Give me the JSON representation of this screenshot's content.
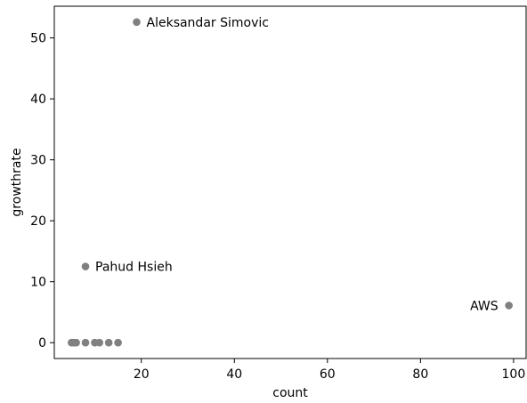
{
  "chart_data": {
    "type": "scatter",
    "title": "",
    "xlabel": "count",
    "ylabel": "growthrate",
    "xlim": [
      1.3,
      102.7
    ],
    "ylim": [
      -2.6,
      55.2
    ],
    "xticks": [
      20,
      40,
      60,
      80,
      100
    ],
    "yticks": [
      0,
      10,
      20,
      30,
      40,
      50
    ],
    "grid": false,
    "marker_color": "#808080",
    "points": [
      {
        "x": 5,
        "y": 0
      },
      {
        "x": 5.5,
        "y": 0
      },
      {
        "x": 6,
        "y": 0
      },
      {
        "x": 8,
        "y": 0
      },
      {
        "x": 10,
        "y": 0
      },
      {
        "x": 11,
        "y": 0
      },
      {
        "x": 13,
        "y": 0
      },
      {
        "x": 15,
        "y": 0
      },
      {
        "x": 8,
        "y": 12.5,
        "label": "Pahud Hsieh"
      },
      {
        "x": 19,
        "y": 52.6,
        "label": "Aleksandar Simovic"
      },
      {
        "x": 99,
        "y": 6.1,
        "label": "AWS"
      }
    ]
  }
}
